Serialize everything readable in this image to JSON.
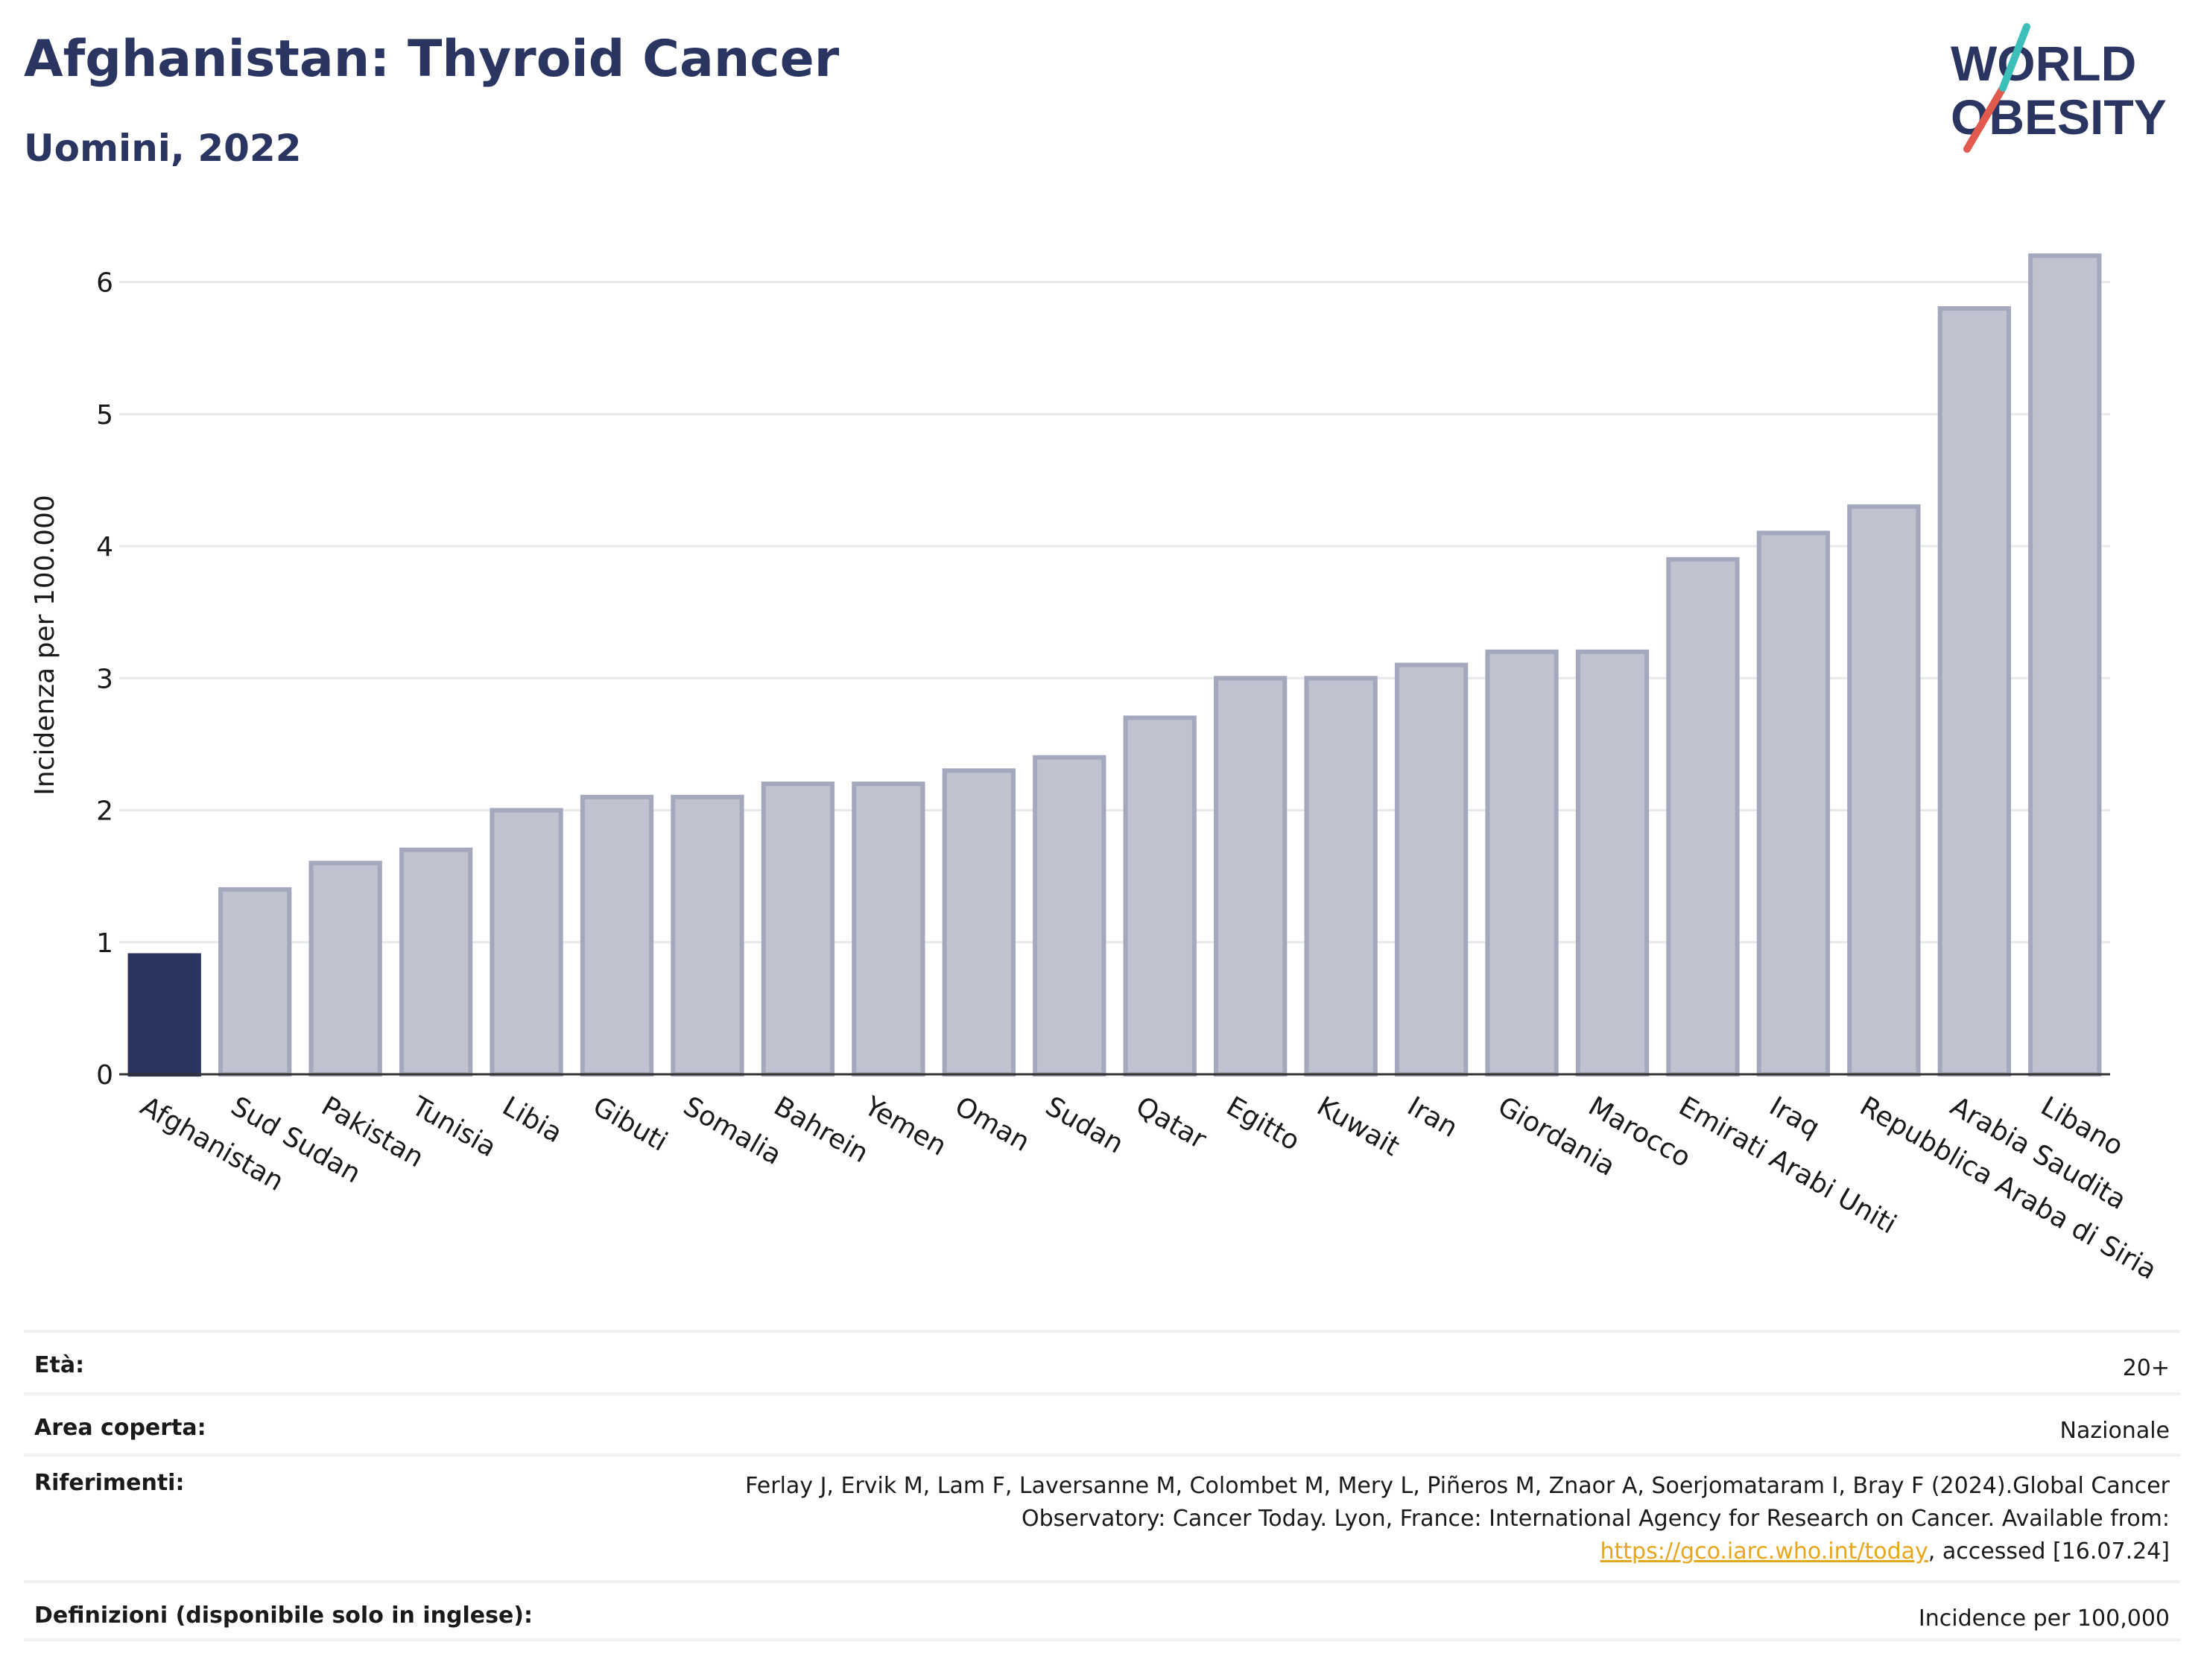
{
  "header": {
    "title": "Afghanistan: Thyroid Cancer",
    "subtitle": "Uomini, 2022"
  },
  "logo": {
    "line1": "WORLD",
    "line2": "OBESITY",
    "colors": [
      "#2a3561",
      "#e05a4e",
      "#3bbfb8"
    ]
  },
  "colors": {
    "highlight": "#2a3561",
    "bar_fill": "#c0c3cf",
    "bar_stroke": "#a3a8bd",
    "grid": "#e8e9ee",
    "text": "#1a1a1a",
    "link": "#e7a61d"
  },
  "chart_data": {
    "type": "bar",
    "title": "Afghanistan: Thyroid Cancer",
    "subtitle": "Uomini, 2022",
    "ylabel": "Incidenza per 100.000",
    "xlabel": "",
    "ylim": [
      0,
      6.5
    ],
    "yticks": [
      0,
      1,
      2,
      3,
      4,
      5,
      6
    ],
    "grid": true,
    "highlight": "Afghanistan",
    "categories": [
      "Afghanistan",
      "Sud Sudan",
      "Pakistan",
      "Tunisia",
      "Libia",
      "Gibuti",
      "Somalia",
      "Bahrein",
      "Yemen",
      "Oman",
      "Sudan",
      "Qatar",
      "Egitto",
      "Kuwait",
      "Iran",
      "Giordania",
      "Marocco",
      "Emirati Arabi Uniti",
      "Iraq",
      "Repubblica Araba di Siria",
      "Arabia Saudita",
      "Libano"
    ],
    "values": [
      0.9,
      1.4,
      1.6,
      1.7,
      2.0,
      2.1,
      2.1,
      2.2,
      2.2,
      2.3,
      2.4,
      2.7,
      3.0,
      3.0,
      3.1,
      3.2,
      3.2,
      3.9,
      4.1,
      4.3,
      5.8,
      6.2
    ]
  },
  "meta": {
    "age_label": "Età:",
    "age_value": "20+",
    "area_label": "Area coperta:",
    "area_value": "Nazionale",
    "ref_label": "Riferimenti:",
    "ref_text_1": "Ferlay J, Ervik M, Lam F, Laversanne M, Colombet M, Mery L, Piñeros M, Znaor A, Soerjomataram I, Bray F (2024).Global Cancer Observatory: Cancer Today. Lyon, France: International Agency for Research on Cancer. Available from: ",
    "ref_link": "https://gco.iarc.who.int/today",
    "ref_text_2": ", accessed [16.07.24]",
    "def_label": "Definizioni (disponibile solo in inglese):",
    "def_value": "Incidence per 100,000"
  }
}
